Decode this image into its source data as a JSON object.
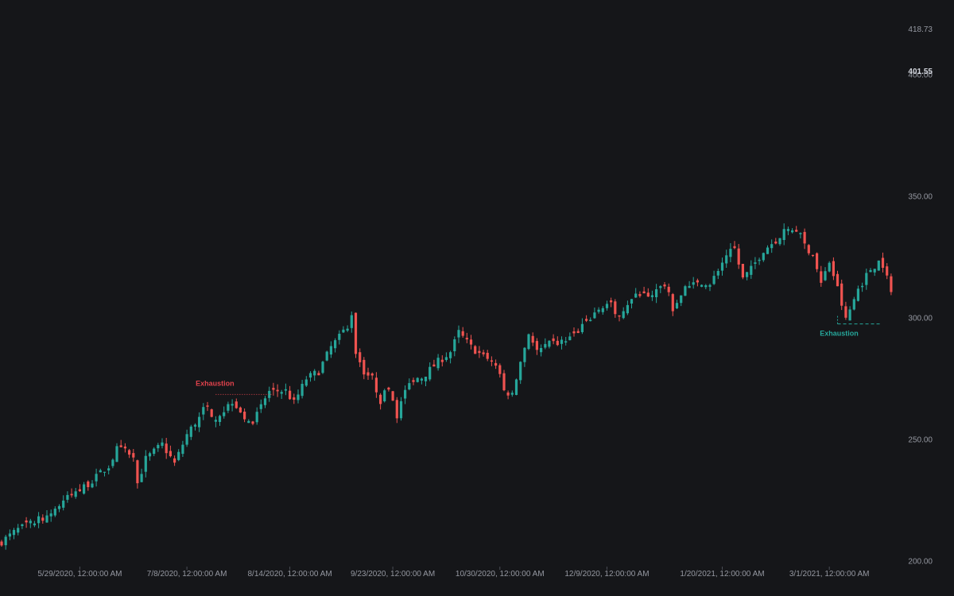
{
  "colors": {
    "background": "#151619",
    "up": "#26a69a",
    "down": "#ef5350",
    "axis_text": "#9598a1",
    "last_price_text": "#d1d4dc",
    "annotation_bearish": "#e0424c",
    "annotation_bullish": "#26a69a"
  },
  "chart_data": {
    "type": "candlestick",
    "title": "",
    "x_axis_labels": [
      "5/29/2020, 12:00:00 AM",
      "7/8/2020, 12:00:00 AM",
      "8/14/2020, 12:00:00 AM",
      "9/23/2020, 12:00:00 AM",
      "10/30/2020, 12:00:00 AM",
      "12/9/2020, 12:00:00 AM",
      "1/20/2021, 12:00:00 AM",
      "3/1/2021, 12:00:00 AM"
    ],
    "x_axis_label_candle_index": [
      19,
      45,
      70,
      95,
      121,
      147,
      175,
      201
    ],
    "y_axis_labels": [
      "418.73",
      "400.00",
      "350.00",
      "300.00",
      "250.00",
      "200.00"
    ],
    "y_axis_label_values": [
      418.73,
      400,
      350,
      300,
      250,
      200
    ],
    "last_price_label": "401.55",
    "ylim": [
      200,
      418.73
    ],
    "annotations": [
      {
        "text": "Exhaustion",
        "type": "bearish",
        "candle_index": 52,
        "level": 268.5
      },
      {
        "text": "Exhaustion",
        "type": "bullish",
        "candle_index": 203,
        "level": 297.5
      }
    ],
    "anchors": [
      [
        0,
        208
      ],
      [
        4,
        213
      ],
      [
        8,
        216
      ],
      [
        12,
        220
      ],
      [
        16,
        226
      ],
      [
        18,
        228
      ],
      [
        22,
        233
      ],
      [
        26,
        239
      ],
      [
        28,
        246
      ],
      [
        32,
        244
      ],
      [
        33,
        232
      ],
      [
        35,
        242
      ],
      [
        39,
        248
      ],
      [
        42,
        240
      ],
      [
        45,
        252
      ],
      [
        49,
        262
      ],
      [
        50,
        265
      ],
      [
        51,
        258
      ],
      [
        54,
        262
      ],
      [
        56,
        266
      ],
      [
        58,
        262
      ],
      [
        60,
        256
      ],
      [
        62,
        260
      ],
      [
        65,
        270
      ],
      [
        69,
        270
      ],
      [
        71,
        265
      ],
      [
        74,
        275
      ],
      [
        77,
        278
      ],
      [
        80,
        288
      ],
      [
        82,
        292
      ],
      [
        84,
        297
      ],
      [
        85,
        302
      ],
      [
        86,
        286
      ],
      [
        88,
        278
      ],
      [
        90,
        275
      ],
      [
        92,
        266
      ],
      [
        94,
        272
      ],
      [
        96,
        260
      ],
      [
        98,
        270
      ],
      [
        100,
        275
      ],
      [
        103,
        277
      ],
      [
        106,
        282
      ],
      [
        109,
        286
      ],
      [
        111,
        294
      ],
      [
        112,
        292
      ],
      [
        114,
        288
      ],
      [
        117,
        284
      ],
      [
        120,
        281
      ],
      [
        122,
        270
      ],
      [
        124,
        268
      ],
      [
        126,
        282
      ],
      [
        128,
        294
      ],
      [
        130,
        286
      ],
      [
        133,
        289
      ],
      [
        136,
        290
      ],
      [
        139,
        293
      ],
      [
        142,
        298
      ],
      [
        145,
        304
      ],
      [
        148,
        306
      ],
      [
        149,
        300
      ],
      [
        152,
        306
      ],
      [
        155,
        310
      ],
      [
        158,
        310
      ],
      [
        161,
        314
      ],
      [
        163,
        304
      ],
      [
        166,
        312
      ],
      [
        169,
        314
      ],
      [
        172,
        313
      ],
      [
        174,
        320
      ],
      [
        176,
        326
      ],
      [
        178,
        328
      ],
      [
        180,
        316
      ],
      [
        182,
        320
      ],
      [
        185,
        328
      ],
      [
        188,
        332
      ],
      [
        190,
        336
      ],
      [
        193,
        337
      ],
      [
        195,
        330
      ],
      [
        197,
        326
      ],
      [
        199,
        314
      ],
      [
        201,
        323
      ],
      [
        203,
        312
      ],
      [
        205,
        299
      ],
      [
        208,
        312
      ],
      [
        211,
        320
      ],
      [
        213,
        323
      ],
      [
        214,
        320
      ],
      [
        216,
        312
      ]
    ]
  }
}
